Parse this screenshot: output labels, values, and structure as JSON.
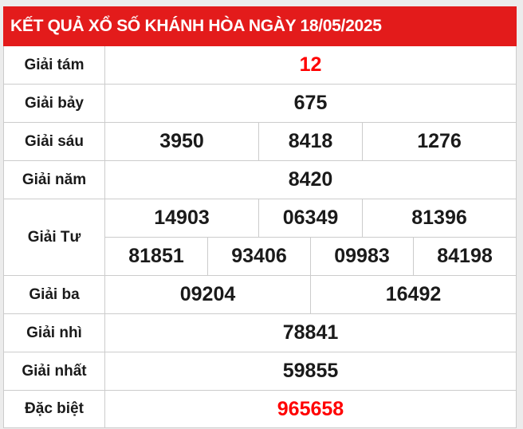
{
  "title": "KẾT QUẢ XỔ SỐ KHÁNH HÒA NGÀY 18/05/2025",
  "accent_color": "#e31b1b",
  "prizes": [
    {
      "label": "Giải tám",
      "numbers": [
        "12"
      ],
      "highlight": true
    },
    {
      "label": "Giải bảy",
      "numbers": [
        "675"
      ]
    },
    {
      "label": "Giải sáu",
      "numbers": [
        "3950",
        "8418",
        "1276"
      ]
    },
    {
      "label": "Giải năm",
      "numbers": [
        "8420"
      ]
    },
    {
      "label": "Giải Tư",
      "numbers": [
        "14903",
        "06349",
        "81396",
        "81851",
        "93406",
        "09983",
        "84198"
      ]
    },
    {
      "label": "Giải ba",
      "numbers": [
        "09204",
        "16492"
      ]
    },
    {
      "label": "Giải nhì",
      "numbers": [
        "78841"
      ]
    },
    {
      "label": "Giải nhất",
      "numbers": [
        "59855"
      ]
    },
    {
      "label": "Đặc biệt",
      "numbers": [
        "965658"
      ],
      "highlight": true
    }
  ]
}
